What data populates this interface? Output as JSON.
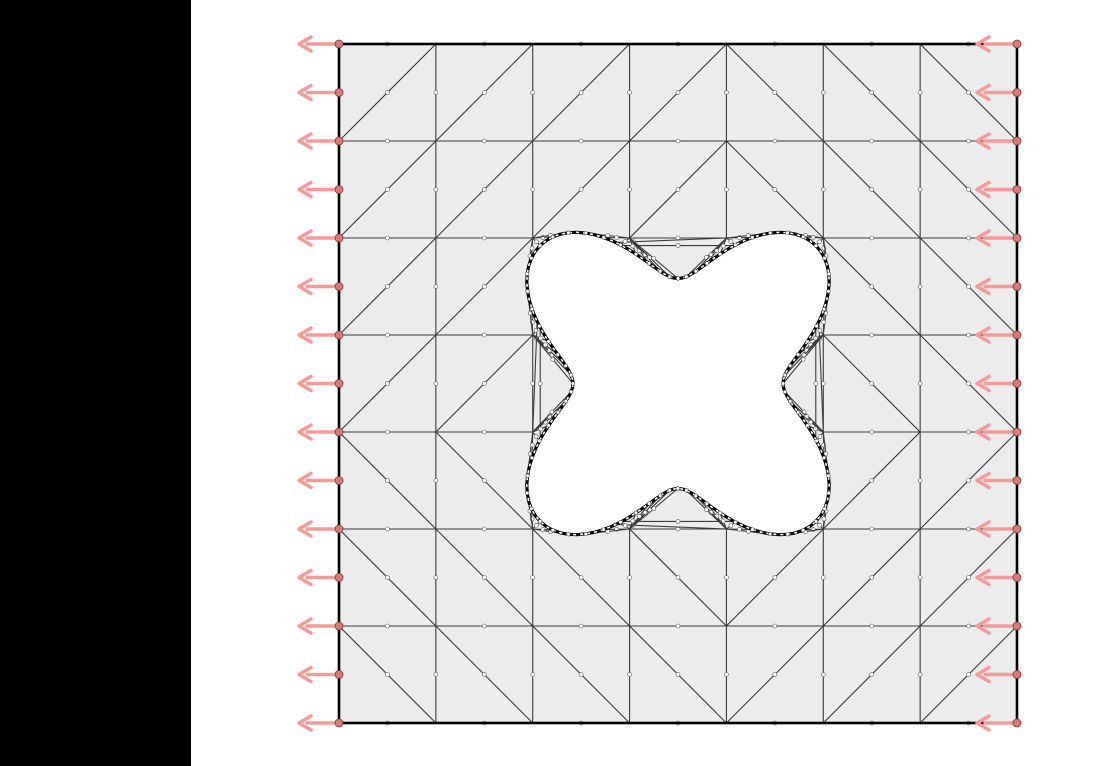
{
  "figure": {
    "description_free": true,
    "panel_color": "#000000",
    "background": "#ffffff",
    "mesh_fill": "#ececec",
    "mesh_edge_color": "#3a3a3a",
    "boundary_color": "#000000",
    "load_arrow_color": "#f59a9a",
    "node_marker_color": "#d97a7a",
    "grid_divisions": 7,
    "hole_shape": "four-lobed",
    "load_direction": "left",
    "boundary_nodes_per_side": 15
  }
}
